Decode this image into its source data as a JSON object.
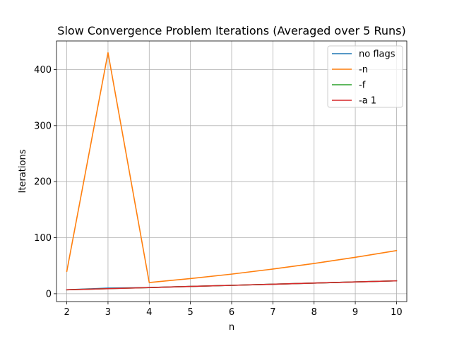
{
  "chart_data": {
    "type": "line",
    "title": "Slow Convergence Problem Iterations (Averaged over 5 Runs)",
    "xlabel": "n",
    "ylabel": "Iterations",
    "x": [
      2,
      3,
      4,
      5,
      6,
      7,
      8,
      9,
      10
    ],
    "xlim": [
      1.75,
      10.25
    ],
    "ylim": [
      -14,
      451
    ],
    "xticks": [
      2,
      3,
      4,
      5,
      6,
      7,
      8,
      9,
      10
    ],
    "yticks": [
      0,
      100,
      200,
      300,
      400
    ],
    "grid": true,
    "legend_position": "top-right",
    "series": [
      {
        "name": "no flags",
        "color": "#1f77b4",
        "values": [
          7,
          10,
          11,
          13,
          15,
          17,
          19,
          21,
          23
        ]
      },
      {
        "name": "-n",
        "color": "#ff7f0e",
        "values": [
          40,
          430,
          20,
          27,
          35,
          44,
          54,
          65,
          77
        ]
      },
      {
        "name": "-f",
        "color": "#2ca02c",
        "values": [
          7,
          9,
          11,
          13,
          15,
          17,
          19,
          21,
          23
        ]
      },
      {
        "name": "-a 1",
        "color": "#d62728",
        "values": [
          7,
          9,
          11,
          13,
          15,
          17,
          19,
          21,
          23
        ]
      }
    ]
  }
}
